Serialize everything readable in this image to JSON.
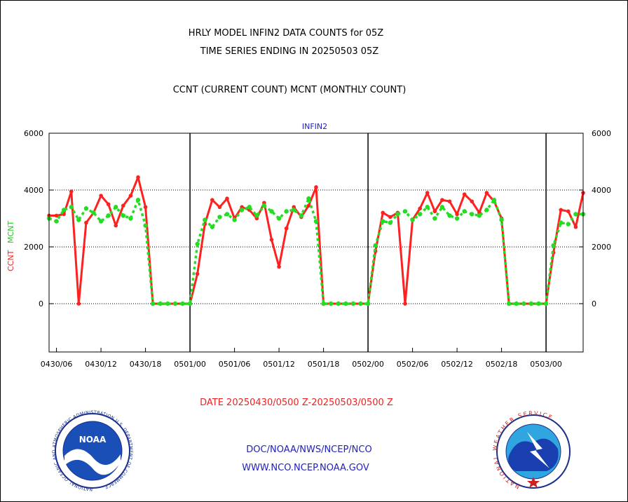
{
  "chart_data": {
    "type": "line",
    "title_lines": [
      "HRLY MODEL INFIN2 DATA COUNTS for 05Z",
      "TIME SERIES ENDING IN 20250503 05Z",
      "CCNT (CURRENT COUNT) MCNT (MONTHLY COUNT)"
    ],
    "panel_label": "INFIN2",
    "ylabel_ccnt": "CCNT",
    "ylabel_mcnt": "MCNT",
    "xlabel": "DATE 20250430/0500 Z-20250503/0500 Z",
    "ylim": [
      -1700,
      6000
    ],
    "y_ticks": [
      0,
      2000,
      4000,
      6000
    ],
    "y_tick_labels": [
      "0",
      "2000",
      "4000",
      "6000"
    ],
    "x_start_hour": 0,
    "x_end_hour": 72,
    "x_ticks": [
      {
        "hour": 1,
        "label": "0430/06"
      },
      {
        "hour": 7,
        "label": "0430/12"
      },
      {
        "hour": 13,
        "label": "0430/18"
      },
      {
        "hour": 19,
        "label": "0501/00"
      },
      {
        "hour": 25,
        "label": "0501/06"
      },
      {
        "hour": 31,
        "label": "0501/12"
      },
      {
        "hour": 37,
        "label": "0501/18"
      },
      {
        "hour": 43,
        "label": "0502/00"
      },
      {
        "hour": 49,
        "label": "0502/06"
      },
      {
        "hour": 55,
        "label": "0502/12"
      },
      {
        "hour": 61,
        "label": "0502/18"
      },
      {
        "hour": 67,
        "label": "0503/00"
      }
    ],
    "day_boundaries": [
      19,
      43,
      67
    ],
    "grid_lines": [
      0,
      2000,
      4000
    ],
    "series": [
      {
        "name": "CCNT",
        "color": "#ff2020",
        "values": [
          3100,
          3100,
          3150,
          3950,
          0,
          2850,
          3200,
          3800,
          3500,
          2750,
          3450,
          3800,
          4450,
          3400,
          0,
          0,
          0,
          0,
          0,
          0,
          1050,
          2800,
          3650,
          3400,
          3700,
          3000,
          3400,
          3300,
          3000,
          3550,
          2250,
          1300,
          2650,
          3400,
          3050,
          3450,
          4100,
          0,
          0,
          0,
          0,
          0,
          0,
          0,
          1850,
          3200,
          3050,
          3200,
          0,
          2950,
          3350,
          3900,
          3250,
          3650,
          3600,
          3150,
          3850,
          3600,
          3200,
          3900,
          3600,
          3000,
          0,
          0,
          0,
          0,
          0,
          0,
          1800,
          3300,
          3250,
          2700,
          3900
        ]
      },
      {
        "name": "MCNT",
        "color": "#22dd22",
        "values": [
          3000,
          2900,
          3300,
          3400,
          2950,
          3350,
          3200,
          2900,
          3100,
          3400,
          3100,
          3000,
          3650,
          2750,
          0,
          0,
          0,
          0,
          0,
          0,
          2100,
          2950,
          2700,
          3050,
          3150,
          2950,
          3300,
          3400,
          3100,
          3450,
          3250,
          3000,
          3250,
          3300,
          3100,
          3700,
          2900,
          0,
          0,
          0,
          0,
          0,
          0,
          0,
          2050,
          2900,
          2850,
          3150,
          3250,
          2950,
          3150,
          3400,
          3000,
          3400,
          3100,
          3000,
          3250,
          3150,
          3100,
          3300,
          3650,
          2950,
          0,
          0,
          0,
          0,
          0,
          0,
          2050,
          2850,
          2800,
          3150,
          3150
        ]
      }
    ]
  },
  "footer": {
    "line1": "DOC/NOAA/NWS/NCEP/NCO",
    "line2": "WWW.NCO.NCEP.NOAA.GOV"
  },
  "logos": {
    "left": {
      "center_text": "NOAA",
      "ring_text": "NATIONAL OCEANIC AND ATMOSPHERIC ADMINISTRATION  U.S. DEPARTMENT OF COMMERCE"
    },
    "right": {
      "ring_text": "NATIONAL WEATHER SERVICE"
    }
  }
}
